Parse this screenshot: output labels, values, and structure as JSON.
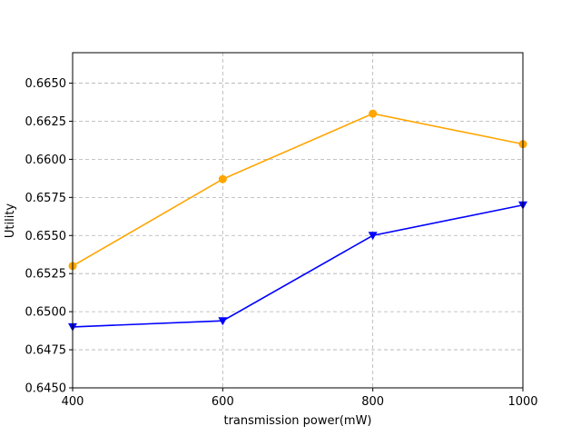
{
  "chart_data": {
    "type": "line",
    "title": "",
    "xlabel": "transmission power(mW)",
    "ylabel": "Utility",
    "x": [
      400,
      600,
      800,
      1000
    ],
    "xlim": [
      400,
      1000
    ],
    "ylim": [
      0.645,
      0.667
    ],
    "xticks": [
      400,
      600,
      800,
      1000
    ],
    "yticks": [
      0.645,
      0.6475,
      0.65,
      0.6525,
      0.655,
      0.6575,
      0.66,
      0.6625,
      0.665
    ],
    "ytick_labels": [
      "0.6450",
      "0.6475",
      "0.6500",
      "0.6525",
      "0.6550",
      "0.6575",
      "0.6600",
      "0.6625",
      "0.6650"
    ],
    "grid": true,
    "series": [
      {
        "color": "#ffa500",
        "marker": "circle",
        "values": [
          0.653,
          0.6587,
          0.663,
          0.661
        ]
      },
      {
        "color": "#0000ff",
        "marker": "triangle-down",
        "values": [
          0.649,
          0.6494,
          0.655,
          0.657
        ]
      }
    ]
  }
}
